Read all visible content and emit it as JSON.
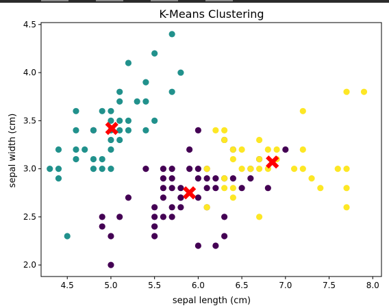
{
  "chart_data": {
    "type": "scatter",
    "title": "K-Means Clustering",
    "xlabel": "sepal length (cm)",
    "ylabel": "sepal width (cm)",
    "xlim": [
      4.2,
      8.1
    ],
    "ylim": [
      1.88,
      4.52
    ],
    "xticks": [
      "4.5",
      "5.0",
      "5.5",
      "6.0",
      "6.5",
      "7.0",
      "7.5",
      "8.0"
    ],
    "yticks": [
      "2.0",
      "2.5",
      "3.0",
      "3.5",
      "4.0",
      "4.5"
    ],
    "grid": false,
    "series": [
      {
        "color": "#440154",
        "points": [
          [
            5.0,
            2.0
          ],
          [
            4.9,
            2.4
          ],
          [
            4.9,
            2.5
          ],
          [
            5.0,
            2.3
          ],
          [
            5.1,
            2.5
          ],
          [
            5.2,
            2.7
          ],
          [
            5.4,
            3.0
          ],
          [
            5.5,
            2.3
          ],
          [
            5.5,
            2.4
          ],
          [
            5.5,
            2.5
          ],
          [
            5.5,
            2.6
          ],
          [
            5.5,
            2.4
          ],
          [
            5.6,
            2.5
          ],
          [
            5.6,
            2.7
          ],
          [
            5.6,
            2.8
          ],
          [
            5.6,
            2.9
          ],
          [
            5.6,
            3.0
          ],
          [
            5.7,
            2.5
          ],
          [
            5.7,
            2.6
          ],
          [
            5.7,
            2.8
          ],
          [
            5.7,
            2.9
          ],
          [
            5.7,
            3.0
          ],
          [
            5.8,
            2.6
          ],
          [
            5.8,
            2.7
          ],
          [
            5.8,
            2.8
          ],
          [
            5.8,
            2.7
          ],
          [
            5.9,
            3.0
          ],
          [
            5.9,
            3.2
          ],
          [
            6.0,
            2.2
          ],
          [
            6.0,
            2.7
          ],
          [
            6.0,
            2.9
          ],
          [
            6.0,
            3.0
          ],
          [
            6.0,
            3.4
          ],
          [
            6.1,
            2.8
          ],
          [
            6.1,
            2.9
          ],
          [
            6.1,
            3.0
          ],
          [
            6.2,
            2.2
          ],
          [
            6.2,
            2.8
          ],
          [
            6.2,
            2.9
          ],
          [
            6.3,
            2.3
          ],
          [
            6.3,
            2.5
          ],
          [
            6.3,
            2.9
          ],
          [
            6.3,
            3.3
          ],
          [
            6.4,
            2.9
          ],
          [
            6.4,
            3.2
          ],
          [
            6.5,
            2.8
          ],
          [
            6.6,
            2.9
          ],
          [
            6.6,
            3.0
          ],
          [
            6.7,
            3.1
          ],
          [
            6.8,
            2.8
          ],
          [
            7.0,
            3.2
          ],
          [
            4.8,
            3.4
          ],
          [
            6.1,
            2.6
          ]
        ]
      },
      {
        "color": "#21918c",
        "points": [
          [
            4.3,
            3.0
          ],
          [
            4.4,
            2.9
          ],
          [
            4.4,
            3.0
          ],
          [
            4.4,
            3.2
          ],
          [
            4.5,
            2.3
          ],
          [
            4.6,
            3.1
          ],
          [
            4.6,
            3.2
          ],
          [
            4.6,
            3.4
          ],
          [
            4.6,
            3.6
          ],
          [
            4.7,
            3.2
          ],
          [
            4.8,
            3.0
          ],
          [
            4.8,
            3.1
          ],
          [
            4.8,
            3.4
          ],
          [
            4.9,
            3.0
          ],
          [
            4.9,
            3.1
          ],
          [
            4.9,
            3.6
          ],
          [
            5.0,
            3.0
          ],
          [
            5.0,
            3.2
          ],
          [
            5.0,
            3.3
          ],
          [
            5.0,
            3.4
          ],
          [
            5.0,
            3.5
          ],
          [
            5.0,
            3.6
          ],
          [
            5.1,
            3.3
          ],
          [
            5.1,
            3.4
          ],
          [
            5.1,
            3.5
          ],
          [
            5.1,
            3.7
          ],
          [
            5.1,
            3.8
          ],
          [
            5.2,
            3.4
          ],
          [
            5.2,
            3.5
          ],
          [
            5.2,
            4.1
          ],
          [
            5.3,
            3.7
          ],
          [
            5.4,
            3.4
          ],
          [
            5.4,
            3.7
          ],
          [
            5.4,
            3.9
          ],
          [
            5.5,
            3.5
          ],
          [
            5.5,
            4.2
          ],
          [
            5.7,
            3.8
          ],
          [
            5.7,
            4.4
          ],
          [
            5.8,
            4.0
          ]
        ]
      },
      {
        "color": "#fde725",
        "points": [
          [
            6.1,
            2.6
          ],
          [
            6.1,
            3.0
          ],
          [
            6.2,
            3.4
          ],
          [
            6.3,
            2.8
          ],
          [
            6.3,
            2.9
          ],
          [
            6.3,
            3.3
          ],
          [
            6.3,
            3.4
          ],
          [
            6.4,
            2.7
          ],
          [
            6.4,
            2.8
          ],
          [
            6.4,
            3.1
          ],
          [
            6.4,
            3.2
          ],
          [
            6.5,
            3.0
          ],
          [
            6.5,
            3.2
          ],
          [
            6.6,
            3.0
          ],
          [
            6.7,
            2.5
          ],
          [
            6.7,
            3.0
          ],
          [
            6.7,
            3.1
          ],
          [
            6.7,
            3.3
          ],
          [
            6.8,
            3.0
          ],
          [
            6.8,
            3.2
          ],
          [
            6.9,
            3.1
          ],
          [
            6.9,
            3.2
          ],
          [
            7.1,
            3.0
          ],
          [
            7.2,
            3.0
          ],
          [
            7.2,
            3.2
          ],
          [
            7.2,
            3.6
          ],
          [
            7.3,
            2.9
          ],
          [
            7.4,
            2.8
          ],
          [
            7.6,
            3.0
          ],
          [
            7.7,
            2.6
          ],
          [
            7.7,
            2.8
          ],
          [
            7.7,
            3.0
          ],
          [
            7.7,
            3.8
          ],
          [
            7.9,
            3.8
          ]
        ]
      }
    ],
    "centroids": {
      "color": "#ff0000",
      "marker": "X",
      "points": [
        [
          5.01,
          3.42
        ],
        [
          5.9,
          2.75
        ],
        [
          6.85,
          3.07
        ]
      ]
    }
  }
}
